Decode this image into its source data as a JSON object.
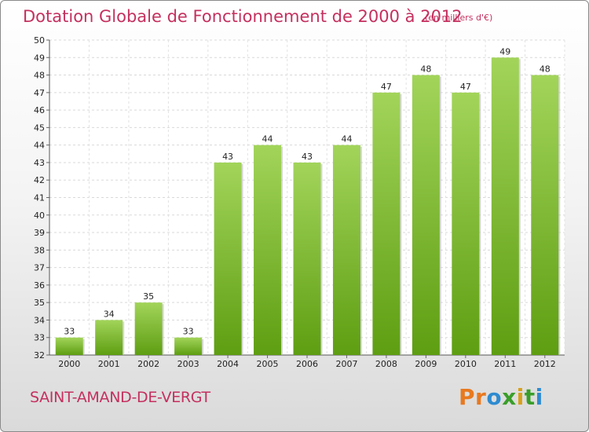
{
  "header": {
    "title": "Dotation Globale de Fonctionnement de 2000 à 2012",
    "unit": "(en milliers d'€)"
  },
  "footer": {
    "place": "SAINT-AMAND-DE-VERGT",
    "logo": [
      "P",
      "r",
      "o",
      "x",
      "i",
      "t",
      "i"
    ]
  },
  "colors": {
    "title": "#c4305f",
    "bar_top": "#a2d45a",
    "bar_bottom": "#5e9e12",
    "logo": [
      "#e8791f",
      "#e8791f",
      "#2e8bd0",
      "#3a9e2a",
      "#d8a019",
      "#3a9e2a",
      "#2e8bd0"
    ]
  },
  "chart_data": {
    "type": "bar",
    "title": "Dotation Globale de Fonctionnement de 2000 à 2012",
    "subtitle": "(en milliers d'€)",
    "categories": [
      "2000",
      "2001",
      "2002",
      "2003",
      "2004",
      "2005",
      "2006",
      "2007",
      "2008",
      "2009",
      "2010",
      "2011",
      "2012"
    ],
    "values": [
      33,
      34,
      35,
      33,
      43,
      44,
      43,
      44,
      47,
      48,
      47,
      49,
      48
    ],
    "ylim": [
      32,
      50
    ],
    "yticks": [
      32,
      33,
      34,
      35,
      36,
      37,
      38,
      39,
      40,
      41,
      42,
      43,
      44,
      45,
      46,
      47,
      48,
      49,
      50
    ],
    "grid": true,
    "legend": "none"
  }
}
